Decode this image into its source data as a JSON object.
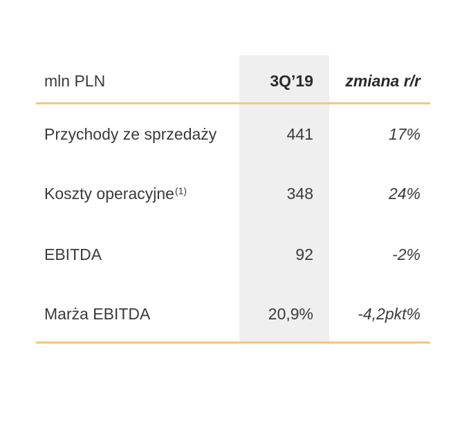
{
  "header": {
    "label": "mln PLN",
    "period": "3Q’19",
    "change": "zmiana r/r"
  },
  "rows": [
    {
      "label": "Przychody ze sprzedaży",
      "footnote": "",
      "value": "441",
      "change": "17%"
    },
    {
      "label": "Koszty operacyjne",
      "footnote": "(1)",
      "value": "348",
      "change": "24%"
    },
    {
      "label": "EBITDA",
      "footnote": "",
      "value": "92",
      "change": "-2%"
    },
    {
      "label": "Marża EBITDA",
      "footnote": "",
      "value": "20,9%",
      "change": "-4,2pkt%"
    }
  ],
  "colors": {
    "accent_rule": "#f4c77a",
    "column_shade": "#efefef",
    "text": "#3a3a3a"
  }
}
